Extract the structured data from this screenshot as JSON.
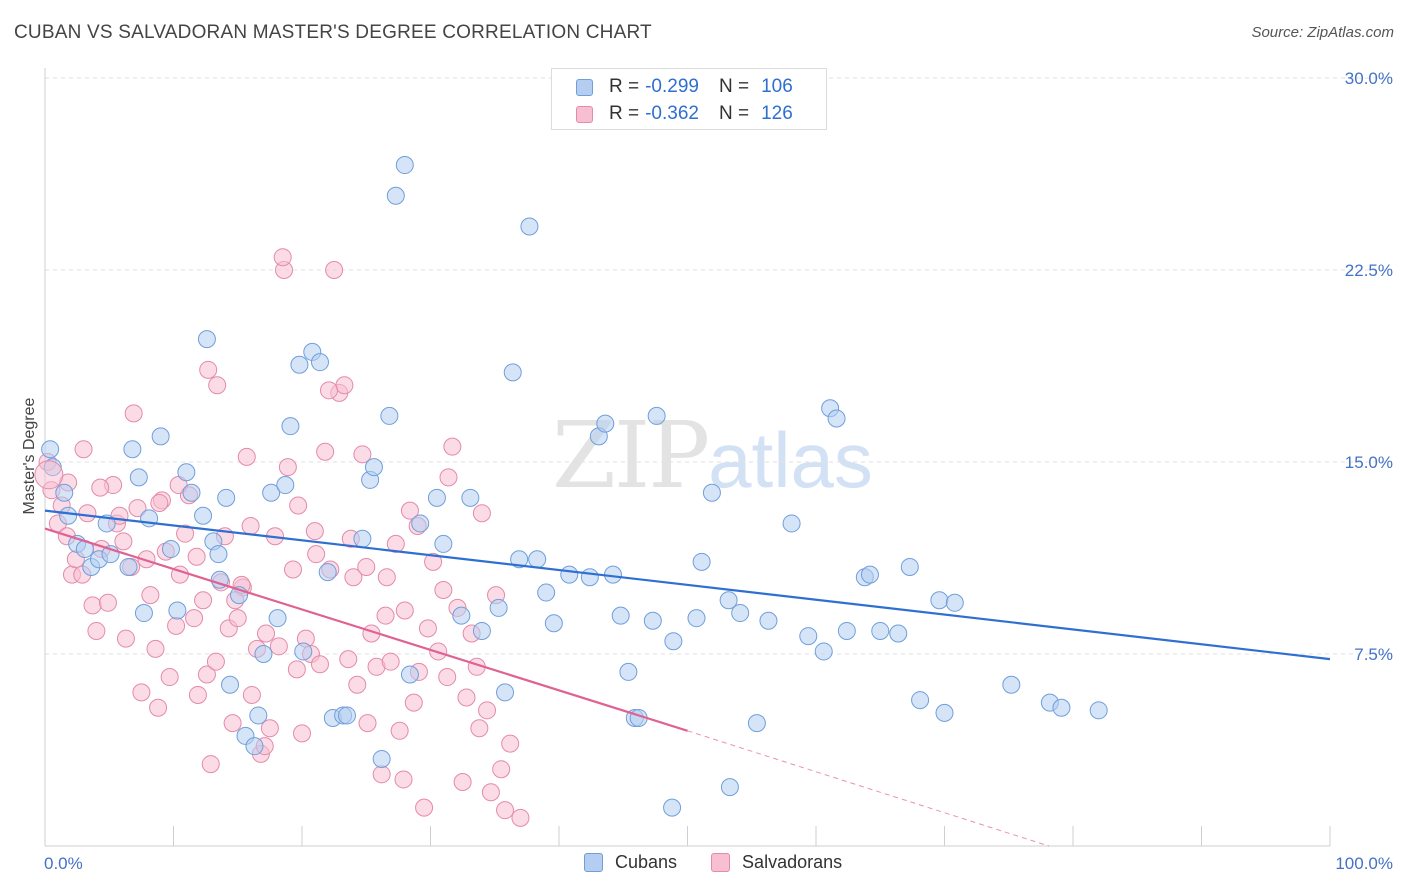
{
  "title": "CUBAN VS SALVADORAN MASTER'S DEGREE CORRELATION CHART",
  "source": "Source: ZipAtlas.com",
  "watermark": {
    "zip": "ZIP",
    "atlas": "atlas"
  },
  "legend": {
    "rows": [
      {
        "r_label": "R =",
        "r_value": "-0.299",
        "n_label": "N =",
        "n_value": "106"
      },
      {
        "r_label": "R =",
        "r_value": "-0.362",
        "n_label": "N =",
        "n_value": "126"
      }
    ],
    "bottom": [
      "Cubans",
      "Salvadorans"
    ]
  },
  "colors": {
    "cubans_fill": "#b4cdf0",
    "cubans_stroke": "#6f9fdb",
    "cubans_line": "#2f6fd1",
    "salvadorans_fill": "#f7bfd1",
    "salvadorans_stroke": "#e48aaa",
    "salvadorans_line": "#e06292",
    "tick_text": "#4472c4",
    "grid": "#e2e2e2"
  },
  "chart_data": {
    "type": "scatter",
    "title": "CUBAN VS SALVADORAN MASTER'S DEGREE CORRELATION CHART",
    "xlabel": "",
    "ylabel": "Master's Degree",
    "xlim": [
      0,
      100
    ],
    "ylim": [
      0,
      30
    ],
    "x_tick_labels": [
      "0.0%",
      "100.0%"
    ],
    "y_ticks": [
      7.5,
      15.0,
      22.5,
      30.0
    ],
    "y_tick_labels": [
      "7.5%",
      "15.0%",
      "22.5%",
      "30.0%"
    ],
    "grid": "horizontal dashed",
    "legend_position": "top-center",
    "series": [
      {
        "name": "Cubans",
        "r": -0.299,
        "n": 106,
        "trend": {
          "x": [
            0,
            100
          ],
          "y": [
            13.1,
            7.3
          ]
        },
        "points": [
          [
            0.4,
            15.5
          ],
          [
            0.6,
            14.8
          ],
          [
            1.5,
            13.8
          ],
          [
            1.8,
            12.9
          ],
          [
            2.5,
            11.8
          ],
          [
            3.1,
            11.6
          ],
          [
            3.6,
            10.9
          ],
          [
            4.2,
            11.2
          ],
          [
            4.8,
            12.6
          ],
          [
            5.1,
            11.4
          ],
          [
            6.5,
            10.9
          ],
          [
            6.8,
            15.5
          ],
          [
            7.3,
            14.4
          ],
          [
            7.7,
            9.1
          ],
          [
            8.1,
            12.8
          ],
          [
            9.0,
            16.0
          ],
          [
            9.8,
            11.6
          ],
          [
            10.3,
            9.2
          ],
          [
            11.0,
            14.6
          ],
          [
            11.4,
            13.8
          ],
          [
            12.3,
            12.9
          ],
          [
            12.6,
            19.8
          ],
          [
            13.1,
            11.9
          ],
          [
            13.5,
            11.4
          ],
          [
            13.6,
            10.4
          ],
          [
            14.1,
            13.6
          ],
          [
            14.4,
            6.3
          ],
          [
            15.1,
            9.8
          ],
          [
            15.6,
            4.3
          ],
          [
            16.3,
            3.9
          ],
          [
            16.6,
            5.1
          ],
          [
            17.0,
            7.5
          ],
          [
            17.6,
            13.8
          ],
          [
            18.1,
            8.9
          ],
          [
            18.7,
            14.1
          ],
          [
            19.1,
            16.4
          ],
          [
            19.8,
            18.8
          ],
          [
            20.1,
            7.6
          ],
          [
            20.8,
            19.3
          ],
          [
            21.4,
            18.9
          ],
          [
            22.0,
            10.7
          ],
          [
            22.4,
            5.0
          ],
          [
            23.2,
            5.1
          ],
          [
            23.5,
            5.1
          ],
          [
            24.7,
            12.0
          ],
          [
            25.3,
            14.3
          ],
          [
            25.6,
            14.8
          ],
          [
            26.2,
            3.4
          ],
          [
            26.8,
            16.8
          ],
          [
            27.3,
            25.4
          ],
          [
            28.0,
            26.6
          ],
          [
            28.4,
            6.7
          ],
          [
            29.2,
            12.6
          ],
          [
            30.5,
            13.6
          ],
          [
            31.0,
            11.8
          ],
          [
            32.4,
            9.0
          ],
          [
            33.1,
            13.6
          ],
          [
            34.0,
            8.4
          ],
          [
            35.3,
            9.3
          ],
          [
            35.8,
            6.0
          ],
          [
            36.4,
            18.5
          ],
          [
            36.9,
            11.2
          ],
          [
            37.7,
            24.2
          ],
          [
            38.3,
            11.2
          ],
          [
            39.0,
            9.9
          ],
          [
            39.6,
            8.7
          ],
          [
            40.8,
            10.6
          ],
          [
            42.4,
            10.5
          ],
          [
            43.1,
            16.0
          ],
          [
            43.6,
            16.5
          ],
          [
            44.2,
            10.6
          ],
          [
            44.8,
            9.0
          ],
          [
            45.4,
            6.8
          ],
          [
            45.9,
            5.0
          ],
          [
            46.2,
            5.0
          ],
          [
            47.3,
            8.8
          ],
          [
            47.6,
            16.8
          ],
          [
            48.9,
            8.0
          ],
          [
            50.7,
            8.9
          ],
          [
            51.1,
            11.1
          ],
          [
            51.9,
            13.8
          ],
          [
            53.2,
            9.6
          ],
          [
            54.1,
            9.1
          ],
          [
            55.4,
            4.8
          ],
          [
            56.3,
            8.8
          ],
          [
            58.1,
            12.6
          ],
          [
            59.4,
            8.2
          ],
          [
            60.6,
            7.6
          ],
          [
            61.1,
            17.1
          ],
          [
            61.6,
            16.7
          ],
          [
            62.4,
            8.4
          ],
          [
            63.8,
            10.5
          ],
          [
            64.2,
            10.6
          ],
          [
            65.0,
            8.4
          ],
          [
            66.4,
            8.3
          ],
          [
            67.3,
            10.9
          ],
          [
            68.1,
            5.7
          ],
          [
            69.6,
            9.6
          ],
          [
            70.0,
            5.2
          ],
          [
            70.8,
            9.5
          ],
          [
            75.2,
            6.3
          ],
          [
            78.2,
            5.6
          ],
          [
            79.1,
            5.4
          ],
          [
            82.0,
            5.3
          ],
          [
            53.3,
            2.3
          ],
          [
            48.8,
            1.5
          ]
        ]
      },
      {
        "name": "Salvadorans",
        "r": -0.362,
        "n": 126,
        "trend": {
          "x": [
            0,
            50
          ],
          "y": [
            12.4,
            4.5
          ]
        },
        "trend_extension": {
          "x": [
            50,
            100
          ],
          "y": [
            4.5,
            -3.5
          ]
        },
        "points": [
          [
            0.2,
            15.0
          ],
          [
            0.5,
            13.9
          ],
          [
            1.0,
            12.6
          ],
          [
            1.3,
            13.3
          ],
          [
            1.7,
            12.1
          ],
          [
            2.1,
            10.6
          ],
          [
            2.4,
            11.2
          ],
          [
            2.9,
            10.6
          ],
          [
            3.3,
            13.0
          ],
          [
            3.7,
            9.4
          ],
          [
            4.0,
            8.4
          ],
          [
            4.4,
            11.6
          ],
          [
            4.9,
            9.5
          ],
          [
            5.3,
            14.1
          ],
          [
            5.6,
            12.6
          ],
          [
            6.1,
            11.9
          ],
          [
            6.3,
            8.1
          ],
          [
            6.7,
            10.9
          ],
          [
            7.2,
            13.2
          ],
          [
            7.5,
            6.0
          ],
          [
            7.9,
            11.2
          ],
          [
            8.2,
            9.8
          ],
          [
            8.6,
            7.7
          ],
          [
            8.8,
            5.4
          ],
          [
            9.1,
            13.5
          ],
          [
            9.4,
            11.5
          ],
          [
            9.7,
            6.6
          ],
          [
            10.2,
            8.6
          ],
          [
            10.5,
            10.6
          ],
          [
            10.9,
            12.2
          ],
          [
            11.2,
            13.7
          ],
          [
            11.6,
            8.9
          ],
          [
            11.9,
            5.9
          ],
          [
            12.3,
            9.6
          ],
          [
            12.6,
            6.7
          ],
          [
            12.9,
            3.2
          ],
          [
            13.3,
            7.2
          ],
          [
            13.7,
            10.3
          ],
          [
            14.0,
            12.1
          ],
          [
            14.3,
            8.5
          ],
          [
            14.6,
            4.8
          ],
          [
            15.0,
            8.9
          ],
          [
            15.4,
            10.1
          ],
          [
            15.7,
            15.2
          ],
          [
            16.1,
            5.9
          ],
          [
            16.5,
            7.7
          ],
          [
            16.8,
            3.6
          ],
          [
            17.2,
            8.3
          ],
          [
            17.5,
            4.6
          ],
          [
            17.9,
            12.1
          ],
          [
            18.2,
            7.8
          ],
          [
            18.6,
            22.5
          ],
          [
            18.9,
            14.8
          ],
          [
            19.3,
            10.8
          ],
          [
            19.6,
            6.9
          ],
          [
            20.0,
            4.4
          ],
          [
            20.3,
            8.1
          ],
          [
            20.7,
            7.5
          ],
          [
            21.1,
            11.4
          ],
          [
            21.4,
            7.1
          ],
          [
            21.8,
            15.4
          ],
          [
            22.2,
            10.8
          ],
          [
            22.5,
            22.5
          ],
          [
            22.9,
            17.7
          ],
          [
            23.3,
            18.0
          ],
          [
            23.6,
            7.3
          ],
          [
            24.0,
            10.5
          ],
          [
            24.3,
            6.3
          ],
          [
            24.7,
            15.3
          ],
          [
            25.1,
            4.8
          ],
          [
            25.4,
            8.3
          ],
          [
            25.8,
            7.0
          ],
          [
            26.2,
            2.8
          ],
          [
            26.5,
            9.0
          ],
          [
            26.9,
            7.2
          ],
          [
            27.3,
            11.8
          ],
          [
            27.6,
            4.5
          ],
          [
            28.0,
            9.2
          ],
          [
            28.4,
            13.1
          ],
          [
            28.7,
            5.6
          ],
          [
            29.1,
            6.8
          ],
          [
            29.5,
            1.5
          ],
          [
            29.8,
            8.5
          ],
          [
            30.2,
            11.1
          ],
          [
            30.6,
            7.6
          ],
          [
            31.0,
            10.0
          ],
          [
            31.3,
            6.6
          ],
          [
            31.7,
            15.6
          ],
          [
            32.1,
            9.3
          ],
          [
            32.5,
            2.5
          ],
          [
            32.8,
            5.8
          ],
          [
            33.2,
            8.3
          ],
          [
            33.6,
            7.0
          ],
          [
            34.0,
            13.0
          ],
          [
            34.4,
            5.3
          ],
          [
            34.7,
            2.1
          ],
          [
            35.1,
            9.8
          ],
          [
            35.5,
            3.0
          ],
          [
            36.2,
            4.0
          ],
          [
            37.0,
            1.1
          ],
          [
            1.8,
            14.2
          ],
          [
            3.0,
            15.5
          ],
          [
            4.3,
            14.0
          ],
          [
            5.8,
            12.9
          ],
          [
            6.9,
            16.9
          ],
          [
            8.9,
            13.4
          ],
          [
            10.4,
            14.1
          ],
          [
            11.8,
            11.3
          ],
          [
            12.7,
            18.6
          ],
          [
            13.4,
            18.0
          ],
          [
            15.3,
            10.2
          ],
          [
            16.0,
            12.5
          ],
          [
            17.1,
            3.9
          ],
          [
            18.5,
            23.0
          ],
          [
            19.7,
            13.3
          ],
          [
            21.0,
            12.3
          ],
          [
            22.1,
            17.8
          ],
          [
            23.8,
            12.0
          ],
          [
            25.0,
            10.9
          ],
          [
            26.6,
            10.5
          ],
          [
            27.9,
            2.6
          ],
          [
            29.0,
            12.5
          ],
          [
            31.4,
            14.4
          ],
          [
            33.8,
            4.6
          ],
          [
            35.8,
            1.4
          ],
          [
            14.8,
            9.6
          ]
        ]
      }
    ]
  }
}
